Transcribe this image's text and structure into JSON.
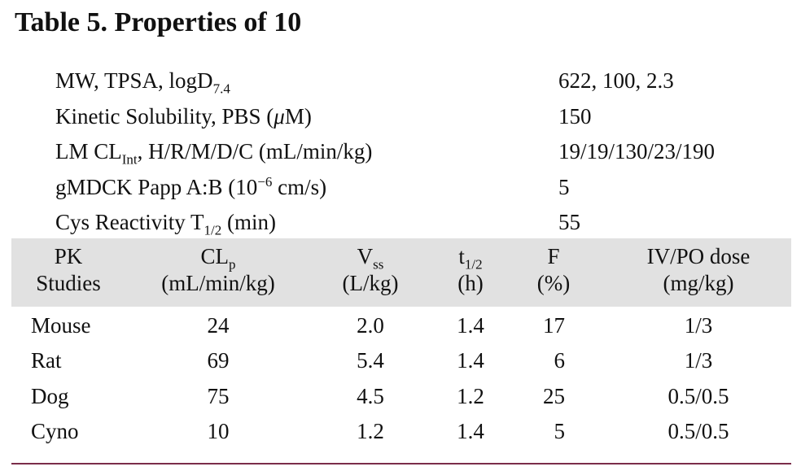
{
  "title": "Table 5. Properties of 10",
  "properties": [
    {
      "label": [
        "MW, TPSA, logD",
        {
          "sub": "7.4"
        }
      ],
      "value": "622, 100, 2.3"
    },
    {
      "label": [
        "Kinetic Solubility, PBS (",
        {
          "i": "μ"
        },
        "M)"
      ],
      "value": "150"
    },
    {
      "label": [
        "LM CL",
        {
          "sub": "Int"
        },
        ", H/R/M/D/C (mL/min/kg)"
      ],
      "value": "19/19/130/23/190"
    },
    {
      "label": [
        "gMDCK Papp A:B (10",
        {
          "sup": "−6"
        },
        " cm/s)"
      ],
      "value": "5"
    },
    {
      "label": [
        "Cys Reactivity T",
        {
          "sub": "1/2"
        },
        " (min)"
      ],
      "value": "55"
    }
  ],
  "pk": {
    "header": [
      [
        [
          "PK"
        ],
        [
          "Studies"
        ]
      ],
      [
        [
          "CL",
          {
            "sub": "p"
          }
        ],
        [
          "(mL/min/kg)"
        ]
      ],
      [
        [
          "V",
          {
            "sub": "ss"
          }
        ],
        [
          "(L/kg)"
        ]
      ],
      [
        [
          "t",
          {
            "sub": "1/2"
          }
        ],
        [
          "(h)"
        ]
      ],
      [
        [
          "F"
        ],
        [
          "(%)"
        ]
      ],
      [
        [
          "IV/PO dose"
        ],
        [
          "(mg/kg)"
        ]
      ]
    ],
    "rows": [
      [
        "Mouse",
        "24",
        "2.0",
        "1.4",
        "17",
        "1/3"
      ],
      [
        "Rat",
        "69",
        "5.4",
        "1.4",
        "6",
        "1/3"
      ],
      [
        "Dog",
        "75",
        "4.5",
        "1.2",
        "25",
        "0.5/0.5"
      ],
      [
        "Cyno",
        "10",
        "1.2",
        "1.4",
        "5",
        "0.5/0.5"
      ]
    ]
  }
}
